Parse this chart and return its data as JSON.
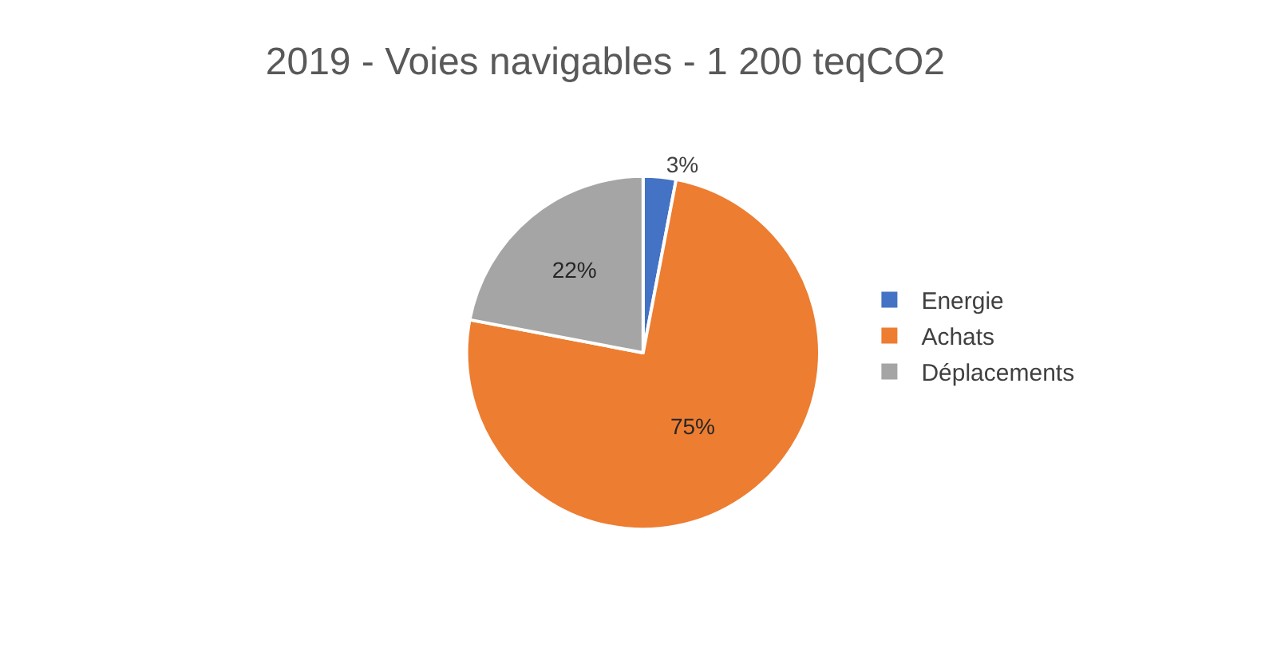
{
  "chart_data": {
    "type": "pie",
    "title": "2019 - Voies navigables - 1 200 teqCO2",
    "categories": [
      "Energie",
      "Achats",
      "Déplacements"
    ],
    "values": [
      3,
      75,
      22
    ],
    "value_labels": [
      "3%",
      "75%",
      "22%"
    ],
    "colors": [
      "#4472c4",
      "#ed7d31",
      "#a5a5a5"
    ],
    "legend": "right"
  }
}
